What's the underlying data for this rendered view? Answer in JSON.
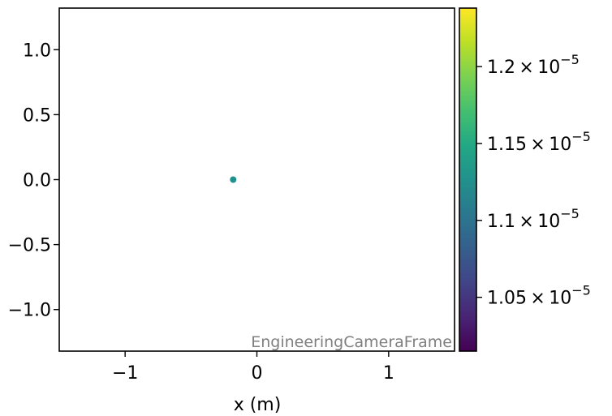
{
  "chart_data": {
    "type": "scatter",
    "title": "",
    "xlabel": "x  (m)",
    "ylabel": "",
    "xlim": [
      -1.5,
      1.5
    ],
    "ylim": [
      -1.32,
      1.32
    ],
    "xticks": [
      -1,
      0,
      1
    ],
    "xtick_labels": [
      "−1",
      "0",
      "1"
    ],
    "yticks": [
      1.0,
      0.5,
      0.0,
      -0.5,
      -1.0
    ],
    "ytick_labels": [
      "1.0",
      "0.5",
      "0.0",
      "−0.5",
      "−1.0"
    ],
    "points": [
      {
        "x": -0.18,
        "y": 0.0,
        "value": 1.13e-05
      }
    ],
    "frame_label": "EngineeringCameraFrame",
    "colorbar": {
      "colormap": "viridis",
      "range": [
        1.015e-05,
        1.238e-05
      ],
      "ticks": [
        {
          "value": 1.05e-05,
          "label_base": "1.05 × 10",
          "label_exp": "−5"
        },
        {
          "value": 1.1e-05,
          "label_base": "1.1 × 10",
          "label_exp": "−5"
        },
        {
          "value": 1.15e-05,
          "label_base": "1.15 × 10",
          "label_exp": "−5"
        },
        {
          "value": 1.2e-05,
          "label_base": "1.2 × 10",
          "label_exp": "−5"
        }
      ]
    },
    "grid": false,
    "colors": {
      "point": "#21918c",
      "frame_label": "#7f7f7f"
    }
  }
}
